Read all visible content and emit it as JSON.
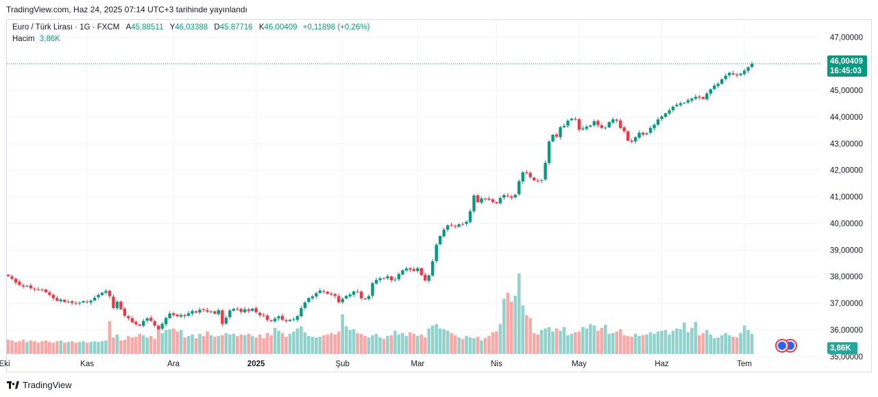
{
  "published": "TradingView.com, Haz 24, 2025 07:14 UTC+3 tarihinde yayınlandı",
  "symbol": "Euro / Türk Lirası · 1G · FXCM",
  "ohlc": [
    {
      "label": "A",
      "value": "45,88511"
    },
    {
      "label": "Y",
      "value": "46,03388"
    },
    {
      "label": "D",
      "value": "45,87716"
    },
    {
      "label": "K",
      "value": "46,00409"
    }
  ],
  "change": "+0,11898 (+0,26%)",
  "volume_label": "Hacim",
  "volume_value": "3,86K",
  "price_tag": "46,00409",
  "countdown": "16:45:03",
  "volume_tag": "3,86K",
  "brand": "TradingView",
  "colors": {
    "up": "#089981",
    "down": "#f23645",
    "up_vol": "#92d2cc",
    "down_vol": "#f7a9a7",
    "grid": "#f0f3fa",
    "text": "#131722"
  },
  "chart_data": {
    "type": "candlestick",
    "title": "Euro / Türk Lirası · 1G · FXCM",
    "xlabel": "",
    "ylabel": "",
    "ylim": [
      35.1,
      47.65
    ],
    "y_ticks": [
      "47,00000",
      "46,00000",
      "45,00000",
      "44,00000",
      "43,00000",
      "42,00000",
      "41,00000",
      "40,00000",
      "39,00000",
      "38,00000",
      "37,00000",
      "36,00000",
      "35,00000"
    ],
    "y_tick_values": [
      47,
      46,
      45,
      44,
      43,
      42,
      41,
      40,
      39,
      38,
      37,
      36,
      35
    ],
    "x_tick_labels": [
      "Eki",
      "Kas",
      "Ara",
      "2025",
      "Şub",
      "Mar",
      "Nis",
      "May",
      "Haz",
      "Tem"
    ],
    "x_tick_bar_index": [
      -1,
      21,
      44,
      66,
      89,
      109,
      130,
      152,
      174,
      196
    ],
    "volume_ylim": [
      0,
      70
    ],
    "closes": [
      38.02,
      37.92,
      37.78,
      37.69,
      37.63,
      37.66,
      37.57,
      37.53,
      37.51,
      37.5,
      37.42,
      37.32,
      37.19,
      37.1,
      37.14,
      37.05,
      37.06,
      37.01,
      36.99,
      37.02,
      37.08,
      37.04,
      37.1,
      37.21,
      37.32,
      37.4,
      37.46,
      37.27,
      36.82,
      37.06,
      36.78,
      36.53,
      36.44,
      36.29,
      36.22,
      36.16,
      36.34,
      36.44,
      36.34,
      36.16,
      36.03,
      36.23,
      36.45,
      36.62,
      36.56,
      36.51,
      36.56,
      36.52,
      36.63,
      36.71,
      36.65,
      36.76,
      36.75,
      36.69,
      36.69,
      36.61,
      36.74,
      36.23,
      36.46,
      36.73,
      36.79,
      36.78,
      36.68,
      36.78,
      36.71,
      36.8,
      36.66,
      36.55,
      36.53,
      36.38,
      36.33,
      36.43,
      36.51,
      36.38,
      36.33,
      36.38,
      36.4,
      36.52,
      36.82,
      37.03,
      37.2,
      37.26,
      37.38,
      37.48,
      37.44,
      37.36,
      37.33,
      37.28,
      37.04,
      37.17,
      37.28,
      37.33,
      37.44,
      37.42,
      37.19,
      37.16,
      37.27,
      37.76,
      37.88,
      37.94,
      37.92,
      38.02,
      37.87,
      37.89,
      38.1,
      38.24,
      38.31,
      38.27,
      38.22,
      38.32,
      38.06,
      37.86,
      38.05,
      38.58,
      39.2,
      39.53,
      39.77,
      39.93,
      39.92,
      39.88,
      39.97,
      39.97,
      40.06,
      40.46,
      41.05,
      40.8,
      40.94,
      40.93,
      40.89,
      40.81,
      40.76,
      40.96,
      41.07,
      41.02,
      40.97,
      41.08,
      41.59,
      41.92,
      41.89,
      41.74,
      41.62,
      41.6,
      41.63,
      42.28,
      43.08,
      43.33,
      43.26,
      43.62,
      43.67,
      43.86,
      43.94,
      43.92,
      43.52,
      43.57,
      43.64,
      43.68,
      43.84,
      43.7,
      43.59,
      43.6,
      43.81,
      43.91,
      43.86,
      43.59,
      43.47,
      43.11,
      43.07,
      43.24,
      43.41,
      43.34,
      43.39,
      43.59,
      43.71,
      43.91,
      44.02,
      44.14,
      44.25,
      44.39,
      44.46,
      44.52,
      44.53,
      44.63,
      44.69,
      44.76,
      44.73,
      44.68,
      44.88,
      45.04,
      45.18,
      45.25,
      45.42,
      45.55,
      45.66,
      45.6,
      45.56,
      45.63,
      45.74,
      45.87,
      46.0
    ],
    "volumes": [
      19,
      18,
      16,
      17,
      19,
      16,
      18,
      17,
      15,
      17,
      18,
      16,
      15,
      17,
      18,
      15,
      16,
      17,
      15,
      16,
      17,
      15,
      16,
      17,
      16,
      17,
      18,
      44,
      22,
      26,
      18,
      19,
      24,
      22,
      23,
      27,
      25,
      22,
      24,
      20,
      35,
      28,
      32,
      33,
      34,
      30,
      32,
      22,
      24,
      26,
      21,
      27,
      24,
      30,
      25,
      23,
      24,
      25,
      28,
      26,
      27,
      24,
      26,
      25,
      27,
      24,
      22,
      26,
      21,
      28,
      25,
      35,
      31,
      28,
      23,
      27,
      30,
      34,
      37,
      29,
      24,
      23,
      22,
      23,
      25,
      26,
      28,
      26,
      30,
      53,
      37,
      32,
      33,
      28,
      27,
      24,
      22,
      25,
      27,
      22,
      20,
      24,
      25,
      31,
      26,
      28,
      24,
      29,
      27,
      24,
      26,
      22,
      34,
      38,
      40,
      34,
      33,
      31,
      28,
      25,
      22,
      20,
      24,
      22,
      21,
      23,
      18,
      21,
      24,
      29,
      30,
      40,
      74,
      82,
      70,
      78,
      108,
      65,
      52,
      48,
      28,
      26,
      32,
      34,
      36,
      30,
      34,
      31,
      36,
      25,
      27,
      29,
      30,
      36,
      34,
      40,
      38,
      31,
      35,
      39,
      27,
      28,
      30,
      33,
      25,
      24,
      23,
      27,
      24,
      25,
      26,
      29,
      27,
      30,
      31,
      32,
      26,
      31,
      34,
      33,
      42,
      29,
      35,
      43,
      25,
      28,
      32,
      26,
      21,
      22,
      25,
      28,
      25,
      23,
      22,
      28,
      38,
      32,
      27
    ]
  }
}
